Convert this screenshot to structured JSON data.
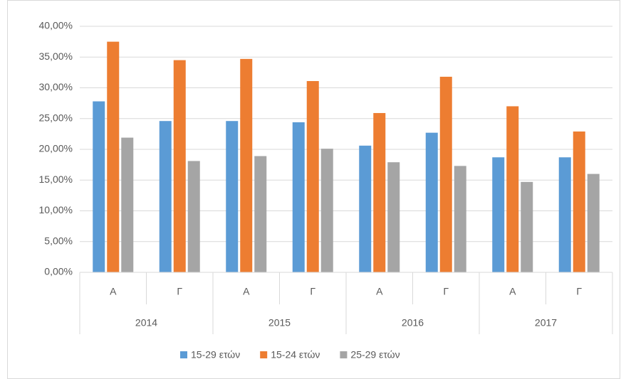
{
  "chart_data": {
    "type": "bar",
    "groups": [
      "2014",
      "2015",
      "2016",
      "2017"
    ],
    "categories": [
      "Α",
      "Γ",
      "Α",
      "Γ",
      "Α",
      "Γ",
      "Α",
      "Γ"
    ],
    "series": [
      {
        "name": "15-29 ετών",
        "color": "#5b9bd5",
        "values": [
          27.8,
          24.6,
          24.6,
          24.4,
          20.6,
          22.7,
          18.7,
          18.7
        ]
      },
      {
        "name": "15-24 ετών",
        "color": "#ed7d31",
        "values": [
          37.5,
          34.5,
          34.7,
          31.1,
          25.9,
          31.8,
          27.0,
          22.9
        ]
      },
      {
        "name": "25-29 ετών",
        "color": "#a5a5a5",
        "values": [
          21.9,
          18.1,
          18.9,
          20.1,
          17.9,
          17.3,
          14.7,
          16.0
        ]
      }
    ],
    "ylim": [
      0,
      40
    ],
    "yticks": [
      {
        "value": 0,
        "label": "0,00%"
      },
      {
        "value": 5,
        "label": "5,00%"
      },
      {
        "value": 10,
        "label": "10,00%"
      },
      {
        "value": 15,
        "label": "15,00%"
      },
      {
        "value": 20,
        "label": "20,00%"
      },
      {
        "value": 25,
        "label": "25,00%"
      },
      {
        "value": 30,
        "label": "30,00%"
      },
      {
        "value": 35,
        "label": "35,00%"
      },
      {
        "value": 40,
        "label": "40,00%"
      }
    ],
    "grid": true,
    "legend": "bottom"
  }
}
